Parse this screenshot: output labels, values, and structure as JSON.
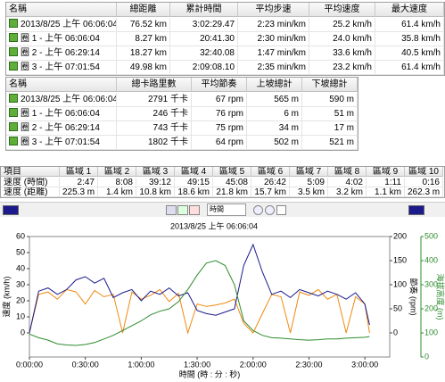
{
  "table1": {
    "columns": [
      "名稱",
      "總距離",
      "累計時間",
      "平均步速",
      "平均速度",
      "最大速度"
    ],
    "rows": [
      [
        "2013/8/25 上午 06:06:04",
        "76.52 km",
        "3:02:29.47",
        "2:23 min/km",
        "25.2 km/h",
        "61.4 km/h"
      ],
      [
        "圈 1 - 上午 06:06:04",
        "8.27 km",
        "20:41.30",
        "2:30 min/km",
        "24.0 km/h",
        "35.8 km/h"
      ],
      [
        "圈 2 - 上午 06:29:14",
        "18.27 km",
        "32:40.08",
        "1:47 min/km",
        "33.6 km/h",
        "40.5 km/h"
      ],
      [
        "圈 3 - 上午 07:01:54",
        "49.98 km",
        "2:09:08.10",
        "2:35 min/km",
        "23.2 km/h",
        "61.4 km/h"
      ]
    ]
  },
  "table2": {
    "columns": [
      "名稱",
      "總卡路里數",
      "平均節奏",
      "上坡總計",
      "下坡總計"
    ],
    "rows": [
      [
        "2013/8/25 上午 06:06:04",
        "2791 千卡",
        "67 rpm",
        "565 m",
        "590 m"
      ],
      [
        "圈 1 - 上午 06:06:04",
        "246 千卡",
        "76 rpm",
        "6 m",
        "51 m"
      ],
      [
        "圈 2 - 上午 06:29:14",
        "743 千卡",
        "75 rpm",
        "34 m",
        "17 m"
      ],
      [
        "圈 3 - 上午 07:01:54",
        "1802 千卡",
        "64 rpm",
        "502 m",
        "521 m"
      ]
    ]
  },
  "zones": {
    "columns": [
      "項目",
      "區域 1",
      "區域 2",
      "區域 3",
      "區域 4",
      "區域 5",
      "區域 6",
      "區域 7",
      "區域 8",
      "區域 9",
      "區域 10"
    ],
    "rows": [
      [
        "速度 (時間)",
        "2:47",
        "8:08",
        "39:12",
        "49:15",
        "45:08",
        "26:42",
        "5:09",
        "4:02",
        "1:11",
        "0:16"
      ],
      [
        "速度 (距離)",
        "225.3 m",
        "1.4 km",
        "10.8 km",
        "18.6 km",
        "21.8 km",
        "15.7 km",
        "3.5 km",
        "3.2 km",
        "1.1 km",
        "262.3 m"
      ]
    ]
  },
  "toolbar": {
    "dropdown": "時間"
  },
  "chart_data": {
    "type": "line",
    "title": "2013/8/25 上午 06:06:04",
    "x_label": "時間 (時 : 分 : 秒)",
    "y_label": "速度 (km/h)",
    "y2_label": "節奏 (rpm)",
    "y3_label": "海拔高度 (m)",
    "x": [
      0,
      300,
      600,
      900,
      1200,
      1500,
      1800,
      2100,
      2400,
      2700,
      3000,
      3300,
      3600,
      3900,
      4200,
      4500,
      4800,
      5100,
      5400,
      5700,
      6000,
      6300,
      6600,
      6900,
      7200,
      7500,
      7800,
      8100,
      8400,
      8700,
      9000,
      9300,
      9600,
      9900,
      10200,
      10500,
      10800,
      10950
    ],
    "xlim": [
      0,
      11600
    ],
    "xticks": [
      {
        "value": 0,
        "label": "0:00:00"
      },
      {
        "value": 1800,
        "label": "0:30:00"
      },
      {
        "value": 3600,
        "label": "1:00:00"
      },
      {
        "value": 5400,
        "label": "1:30:00"
      },
      {
        "value": 7200,
        "label": "2:00:00"
      },
      {
        "value": 9000,
        "label": "2:30:00"
      },
      {
        "value": 10800,
        "label": "3:00:00"
      }
    ],
    "ylim": [
      -15,
      60
    ],
    "yticks": [
      0,
      10,
      20,
      30,
      40,
      50,
      60
    ],
    "y2lim": [
      -50,
      200
    ],
    "y2ticks": [
      0,
      50,
      100,
      150,
      200
    ],
    "y3lim": [
      0,
      500
    ],
    "y3ticks": [
      0,
      100,
      200,
      300,
      400,
      500
    ],
    "series": [
      {
        "name": "速度",
        "color": "#1a1a8c",
        "axis": "y",
        "values": [
          0,
          26,
          28,
          24,
          27,
          33,
          35,
          31,
          34,
          22,
          25,
          27,
          20,
          26,
          24,
          28,
          23,
          25,
          14,
          12,
          11,
          13,
          15,
          42,
          55,
          38,
          24,
          26,
          22,
          27,
          25,
          23,
          26,
          24,
          21,
          25,
          18,
          5
        ]
      },
      {
        "name": "節奏",
        "color": "#f08a10",
        "axis": "y2",
        "values": [
          0,
          80,
          85,
          70,
          90,
          85,
          60,
          88,
          75,
          80,
          0,
          85,
          70,
          78,
          90,
          65,
          82,
          0,
          60,
          55,
          58,
          62,
          70,
          20,
          0,
          40,
          80,
          75,
          0,
          85,
          78,
          90,
          70,
          80,
          0,
          75,
          60,
          0
        ]
      },
      {
        "name": "海拔高度",
        "color": "#2e8b2e",
        "axis": "y3",
        "values": [
          95,
          80,
          70,
          55,
          50,
          48,
          52,
          60,
          75,
          90,
          110,
          130,
          150,
          175,
          190,
          200,
          230,
          280,
          340,
          390,
          400,
          380,
          300,
          150,
          110,
          90,
          80,
          78,
          75,
          72,
          70,
          72,
          75,
          75,
          78,
          80,
          82,
          85
        ]
      }
    ]
  }
}
